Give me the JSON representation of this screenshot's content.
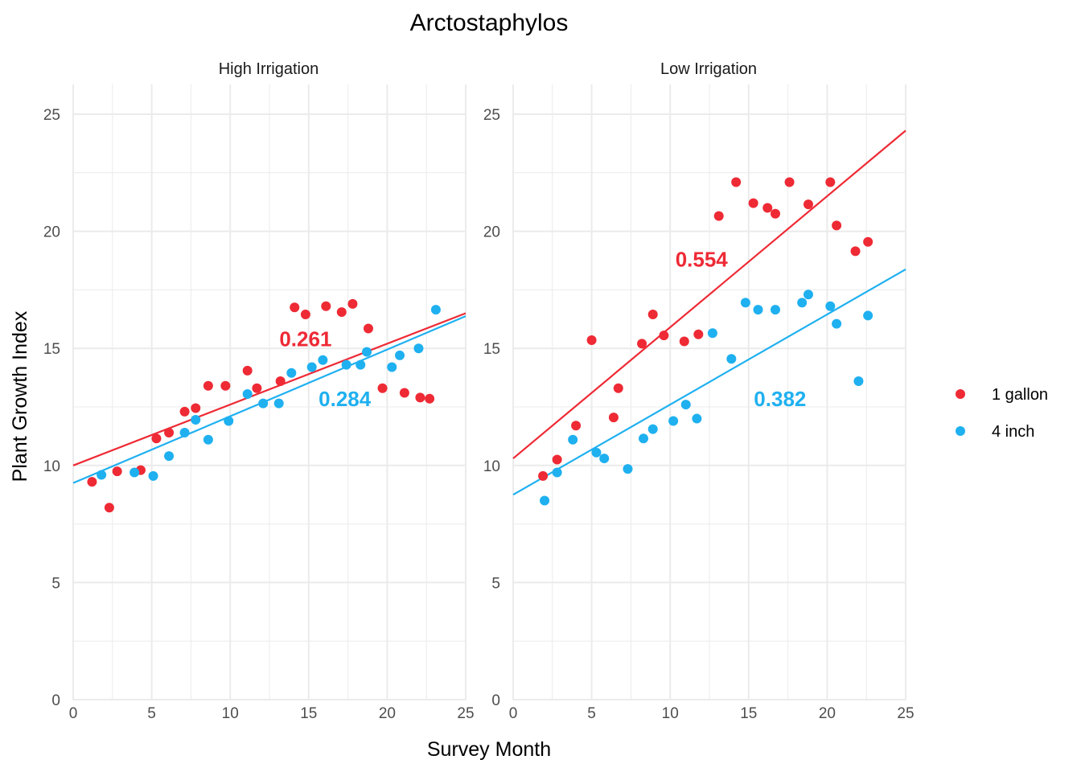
{
  "chart_data": {
    "type": "scatter",
    "title": "Arctostaphylos",
    "xlabel": "Survey Month",
    "ylabel": "Plant Growth Index",
    "xlim": [
      0,
      25
    ],
    "ylim": [
      0,
      25
    ],
    "x_ticks": [
      0,
      5,
      10,
      15,
      20,
      25
    ],
    "y_ticks": [
      0,
      5,
      10,
      15,
      20,
      25
    ],
    "grid": true,
    "legend_position": "right",
    "series_colors": {
      "1 gallon": "#ee2a35",
      "4 inch": "#1fb0f0"
    },
    "legend": [
      {
        "name": "1 gallon",
        "color": "#ee2a35"
      },
      {
        "name": "4 inch",
        "color": "#1fb0f0"
      }
    ],
    "panels": [
      {
        "label": "High Irrigation",
        "series": [
          {
            "name": "1 gallon",
            "points": [
              [
                1.2,
                9.3
              ],
              [
                2.3,
                8.2
              ],
              [
                2.8,
                9.75
              ],
              [
                4.3,
                9.8
              ],
              [
                5.3,
                11.15
              ],
              [
                6.1,
                11.4
              ],
              [
                7.1,
                12.3
              ],
              [
                7.8,
                12.45
              ],
              [
                8.6,
                13.4
              ],
              [
                9.7,
                13.4
              ],
              [
                11.1,
                14.05
              ],
              [
                11.7,
                13.3
              ],
              [
                13.2,
                13.6
              ],
              [
                14.1,
                16.75
              ],
              [
                14.8,
                16.45
              ],
              [
                16.1,
                16.8
              ],
              [
                17.1,
                16.55
              ],
              [
                17.8,
                16.9
              ],
              [
                18.8,
                15.85
              ],
              [
                19.7,
                13.3
              ],
              [
                21.1,
                13.1
              ],
              [
                22.1,
                12.9
              ],
              [
                22.7,
                12.85
              ]
            ],
            "fit": {
              "intercept": 10.0,
              "slope": 0.26
            },
            "r2_label": "0.261",
            "r2_pos": [
              14.8,
              15.4
            ]
          },
          {
            "name": "4 inch",
            "points": [
              [
                1.8,
                9.6
              ],
              [
                3.9,
                9.7
              ],
              [
                5.1,
                9.55
              ],
              [
                6.1,
                10.4
              ],
              [
                7.1,
                11.4
              ],
              [
                7.8,
                11.95
              ],
              [
                8.6,
                11.1
              ],
              [
                9.9,
                11.9
              ],
              [
                11.1,
                13.05
              ],
              [
                12.1,
                12.65
              ],
              [
                13.1,
                12.65
              ],
              [
                13.9,
                13.95
              ],
              [
                15.2,
                14.2
              ],
              [
                15.9,
                14.5
              ],
              [
                17.4,
                14.3
              ],
              [
                18.3,
                14.3
              ],
              [
                18.7,
                14.85
              ],
              [
                20.3,
                14.2
              ],
              [
                20.8,
                14.7
              ],
              [
                22.0,
                15.0
              ],
              [
                23.1,
                16.65
              ]
            ],
            "fit": {
              "intercept": 9.25,
              "slope": 0.285
            },
            "r2_label": "0.284",
            "r2_pos": [
              17.3,
              12.85
            ]
          }
        ]
      },
      {
        "label": "Low Irrigation",
        "series": [
          {
            "name": "1 gallon",
            "points": [
              [
                1.9,
                9.55
              ],
              [
                2.8,
                10.25
              ],
              [
                4.0,
                11.7
              ],
              [
                5.0,
                15.35
              ],
              [
                6.4,
                12.05
              ],
              [
                6.7,
                13.3
              ],
              [
                8.2,
                15.2
              ],
              [
                8.9,
                16.45
              ],
              [
                9.6,
                15.55
              ],
              [
                10.9,
                15.3
              ],
              [
                11.8,
                15.6
              ],
              [
                13.1,
                20.65
              ],
              [
                14.2,
                22.1
              ],
              [
                15.3,
                21.2
              ],
              [
                16.2,
                21.0
              ],
              [
                16.7,
                20.75
              ],
              [
                17.6,
                22.1
              ],
              [
                18.8,
                21.15
              ],
              [
                20.2,
                22.1
              ],
              [
                20.6,
                20.25
              ],
              [
                21.8,
                19.15
              ],
              [
                22.6,
                19.55
              ]
            ],
            "fit": {
              "intercept": 10.3,
              "slope": 0.56
            },
            "r2_label": "0.554",
            "r2_pos": [
              12.0,
              18.8
            ]
          },
          {
            "name": "4 inch",
            "points": [
              [
                2.0,
                8.5
              ],
              [
                2.8,
                9.7
              ],
              [
                3.8,
                11.1
              ],
              [
                5.3,
                10.55
              ],
              [
                5.8,
                10.3
              ],
              [
                7.3,
                9.85
              ],
              [
                8.3,
                11.15
              ],
              [
                8.9,
                11.55
              ],
              [
                10.2,
                11.9
              ],
              [
                11.0,
                12.6
              ],
              [
                11.7,
                12.0
              ],
              [
                12.7,
                15.65
              ],
              [
                13.9,
                14.55
              ],
              [
                14.8,
                16.95
              ],
              [
                15.6,
                16.65
              ],
              [
                16.7,
                16.65
              ],
              [
                18.4,
                16.95
              ],
              [
                18.8,
                17.3
              ],
              [
                20.2,
                16.8
              ],
              [
                20.6,
                16.05
              ],
              [
                22.0,
                13.6
              ],
              [
                22.6,
                16.4
              ]
            ],
            "fit": {
              "intercept": 8.75,
              "slope": 0.385
            },
            "r2_label": "0.382",
            "r2_pos": [
              17.0,
              12.85
            ]
          }
        ]
      }
    ]
  }
}
